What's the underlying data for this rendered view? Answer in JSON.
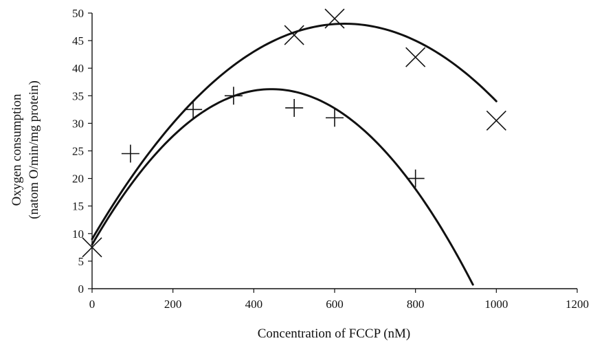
{
  "chart_data": {
    "type": "scatter",
    "xlabel": "Concentration of FCCP (nM)",
    "ylabel_line1": "Oxygen consumption",
    "ylabel_line2": "(natom O/min/mg protein)",
    "xlim": [
      0,
      1200
    ],
    "ylim": [
      0,
      50
    ],
    "xticks": [
      0,
      200,
      400,
      600,
      800,
      1000,
      1200
    ],
    "yticks": [
      0,
      5,
      10,
      15,
      20,
      25,
      30,
      35,
      40,
      45,
      50
    ],
    "grid": false,
    "series": [
      {
        "marker": "x",
        "points": [
          [
            0,
            7.5
          ],
          [
            500,
            46
          ],
          [
            600,
            49
          ],
          [
            800,
            42
          ],
          [
            1000,
            30.5
          ]
        ],
        "trendline": {
          "type": "polynomial",
          "coefficients": [
            9,
            0.125,
            -0.0001
          ],
          "x_range": [
            0,
            1000
          ]
        }
      },
      {
        "marker": "plus",
        "points": [
          [
            95,
            24.5
          ],
          [
            250,
            32.5
          ],
          [
            350,
            35
          ],
          [
            500,
            32.8
          ],
          [
            600,
            31
          ],
          [
            800,
            20
          ]
        ],
        "trendline": {
          "type": "polynomial",
          "coefficients": [
            8,
            0.127,
            -0.000143
          ],
          "x_range": [
            0,
            942
          ]
        }
      }
    ],
    "colors": {
      "ink": "#111111"
    }
  }
}
